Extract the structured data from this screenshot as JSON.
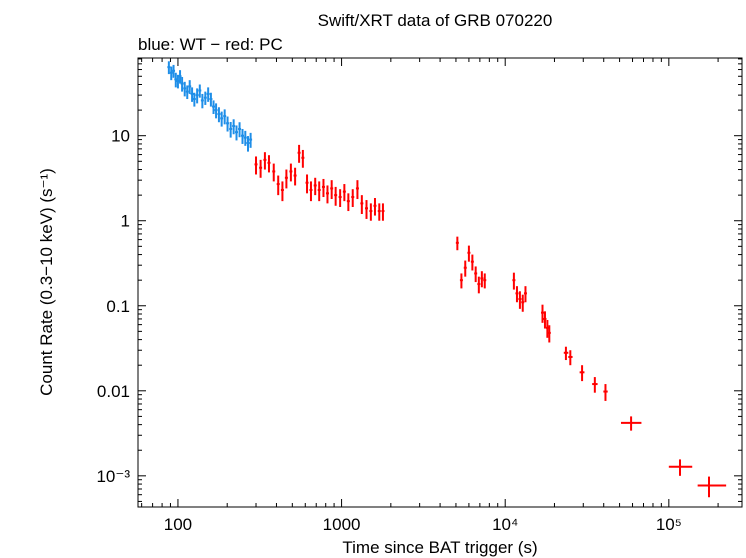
{
  "chart_data": {
    "type": "scatter",
    "title": "Swift/XRT data of GRB 070220",
    "subtitle": "blue: WT − red: PC",
    "xlabel": "Time since BAT trigger (s)",
    "ylabel": "Count Rate (0.3−10 keV) (s⁻¹)",
    "xscale": "log",
    "yscale": "log",
    "xlim": [
      57,
      280000
    ],
    "ylim": [
      0.00043,
      82
    ],
    "grid": false,
    "x_tick_labels": [
      "100",
      "1000",
      "10⁴",
      "10⁵"
    ],
    "x_tick_values": [
      100,
      1000,
      10000,
      100000
    ],
    "y_tick_labels": [
      "10⁻³",
      "0.01",
      "0.1",
      "1",
      "10"
    ],
    "y_tick_values": [
      0.001,
      0.01,
      0.1,
      1,
      10
    ],
    "colors": {
      "WT": "#1e8ee8",
      "PC": "#ff0000",
      "axes": "#000000"
    },
    "series": [
      {
        "name": "WT",
        "color": "#1e8ee8",
        "points": [
          {
            "x": 88,
            "y": 64,
            "yerr": 11
          },
          {
            "x": 91,
            "y": 55,
            "yerr": 10
          },
          {
            "x": 94,
            "y": 58,
            "yerr": 10
          },
          {
            "x": 97,
            "y": 46,
            "yerr": 9
          },
          {
            "x": 100,
            "y": 44,
            "yerr": 8
          },
          {
            "x": 103,
            "y": 50,
            "yerr": 9
          },
          {
            "x": 106,
            "y": 41,
            "yerr": 8
          },
          {
            "x": 110,
            "y": 36,
            "yerr": 7
          },
          {
            "x": 114,
            "y": 33,
            "yerr": 6
          },
          {
            "x": 118,
            "y": 38,
            "yerr": 7
          },
          {
            "x": 122,
            "y": 31,
            "yerr": 6
          },
          {
            "x": 126,
            "y": 27,
            "yerr": 5
          },
          {
            "x": 131,
            "y": 30,
            "yerr": 6
          },
          {
            "x": 136,
            "y": 34,
            "yerr": 6
          },
          {
            "x": 141,
            "y": 26,
            "yerr": 5
          },
          {
            "x": 147,
            "y": 28,
            "yerr": 5
          },
          {
            "x": 153,
            "y": 31,
            "yerr": 6
          },
          {
            "x": 159,
            "y": 27,
            "yerr": 5
          },
          {
            "x": 165,
            "y": 22,
            "yerr": 4
          },
          {
            "x": 171,
            "y": 20,
            "yerr": 4
          },
          {
            "x": 178,
            "y": 18,
            "yerr": 3.6
          },
          {
            "x": 185,
            "y": 16,
            "yerr": 3.2
          },
          {
            "x": 193,
            "y": 17,
            "yerr": 3.4
          },
          {
            "x": 201,
            "y": 14,
            "yerr": 2.8
          },
          {
            "x": 210,
            "y": 12,
            "yerr": 2.5
          },
          {
            "x": 219,
            "y": 13,
            "yerr": 2.6
          },
          {
            "x": 228,
            "y": 11,
            "yerr": 2.2
          },
          {
            "x": 238,
            "y": 12,
            "yerr": 2.4
          },
          {
            "x": 248,
            "y": 10,
            "yerr": 2
          },
          {
            "x": 258,
            "y": 9.5,
            "yerr": 1.9
          },
          {
            "x": 268,
            "y": 8.2,
            "yerr": 1.7
          },
          {
            "x": 278,
            "y": 9,
            "yerr": 1.8
          }
        ]
      },
      {
        "name": "PC",
        "color": "#ff0000",
        "points": [
          {
            "x": 300,
            "y": 4.6,
            "yerr": 1.1
          },
          {
            "x": 320,
            "y": 4.2,
            "yerr": 1
          },
          {
            "x": 340,
            "y": 5.2,
            "yerr": 1.2
          },
          {
            "x": 360,
            "y": 4.8,
            "yerr": 1.1
          },
          {
            "x": 385,
            "y": 3.8,
            "yerr": 0.9
          },
          {
            "x": 410,
            "y": 2.7,
            "yerr": 0.7
          },
          {
            "x": 435,
            "y": 2.3,
            "yerr": 0.6
          },
          {
            "x": 460,
            "y": 3.2,
            "yerr": 0.8
          },
          {
            "x": 490,
            "y": 3.8,
            "yerr": 0.9
          },
          {
            "x": 520,
            "y": 3.4,
            "yerr": 0.8
          },
          {
            "x": 550,
            "y": 6.3,
            "yerr": 1.5
          },
          {
            "x": 580,
            "y": 5.5,
            "yerr": 1.3
          },
          {
            "x": 615,
            "y": 2.8,
            "yerr": 0.7
          },
          {
            "x": 650,
            "y": 2.3,
            "yerr": 0.6
          },
          {
            "x": 690,
            "y": 2.6,
            "yerr": 0.6
          },
          {
            "x": 730,
            "y": 2.3,
            "yerr": 0.6
          },
          {
            "x": 775,
            "y": 2.5,
            "yerr": 0.6
          },
          {
            "x": 820,
            "y": 2.1,
            "yerr": 0.5
          },
          {
            "x": 870,
            "y": 2.4,
            "yerr": 0.6
          },
          {
            "x": 920,
            "y": 2.0,
            "yerr": 0.5
          },
          {
            "x": 980,
            "y": 1.9,
            "yerr": 0.45
          },
          {
            "x": 1040,
            "y": 2.2,
            "yerr": 0.5
          },
          {
            "x": 1100,
            "y": 1.7,
            "yerr": 0.4
          },
          {
            "x": 1170,
            "y": 1.9,
            "yerr": 0.45
          },
          {
            "x": 1250,
            "y": 2.4,
            "yerr": 0.6
          },
          {
            "x": 1330,
            "y": 1.6,
            "yerr": 0.4
          },
          {
            "x": 1420,
            "y": 1.4,
            "yerr": 0.35
          },
          {
            "x": 1510,
            "y": 1.3,
            "yerr": 0.3
          },
          {
            "x": 1600,
            "y": 1.5,
            "yerr": 0.35
          },
          {
            "x": 1700,
            "y": 1.3,
            "yerr": 0.3
          },
          {
            "x": 1790,
            "y": 1.3,
            "yerr": 0.3
          },
          {
            "x": 5100,
            "y": 0.55,
            "yerr": 0.1
          },
          {
            "x": 5400,
            "y": 0.2,
            "yerr": 0.04
          },
          {
            "x": 5700,
            "y": 0.28,
            "yerr": 0.06
          },
          {
            "x": 6000,
            "y": 0.42,
            "yerr": 0.09
          },
          {
            "x": 6300,
            "y": 0.33,
            "yerr": 0.07
          },
          {
            "x": 6600,
            "y": 0.24,
            "yerr": 0.05
          },
          {
            "x": 6900,
            "y": 0.18,
            "yerr": 0.04
          },
          {
            "x": 7200,
            "y": 0.21,
            "yerr": 0.045
          },
          {
            "x": 7500,
            "y": 0.2,
            "yerr": 0.04
          },
          {
            "x": 11300,
            "y": 0.2,
            "yerr": 0.045
          },
          {
            "x": 11800,
            "y": 0.14,
            "yerr": 0.03
          },
          {
            "x": 12300,
            "y": 0.12,
            "yerr": 0.028
          },
          {
            "x": 12800,
            "y": 0.11,
            "yerr": 0.025
          },
          {
            "x": 13300,
            "y": 0.14,
            "yerr": 0.03
          },
          {
            "x": 16900,
            "y": 0.083,
            "yerr": 0.02
          },
          {
            "x": 17500,
            "y": 0.07,
            "yerr": 0.016
          },
          {
            "x": 18100,
            "y": 0.055,
            "yerr": 0.013
          },
          {
            "x": 18600,
            "y": 0.048,
            "yerr": 0.011
          },
          {
            "x": 23500,
            "y": 0.028,
            "yerr": 0.005,
            "xlo": 22800,
            "xhi": 24300
          },
          {
            "x": 25000,
            "y": 0.025,
            "yerr": 0.005,
            "xlo": 24300,
            "xhi": 25800
          },
          {
            "x": 29500,
            "y": 0.0165,
            "yerr": 0.0035,
            "xlo": 28500,
            "xhi": 30500
          },
          {
            "x": 35300,
            "y": 0.012,
            "yerr": 0.0025,
            "xlo": 34000,
            "xhi": 36700
          },
          {
            "x": 41000,
            "y": 0.0098,
            "yerr": 0.0022,
            "xlo": 39800,
            "xhi": 42300
          },
          {
            "x": 58800,
            "y": 0.0042,
            "yerr": 0.0008,
            "xlo": 51000,
            "xhi": 68000
          },
          {
            "x": 117000,
            "y": 0.00128,
            "yerr": 0.00028,
            "xlo": 100000,
            "xhi": 139000
          },
          {
            "x": 176000,
            "y": 0.00077,
            "yerr": 0.00021,
            "xlo": 150000,
            "xhi": 224000
          }
        ]
      }
    ]
  }
}
